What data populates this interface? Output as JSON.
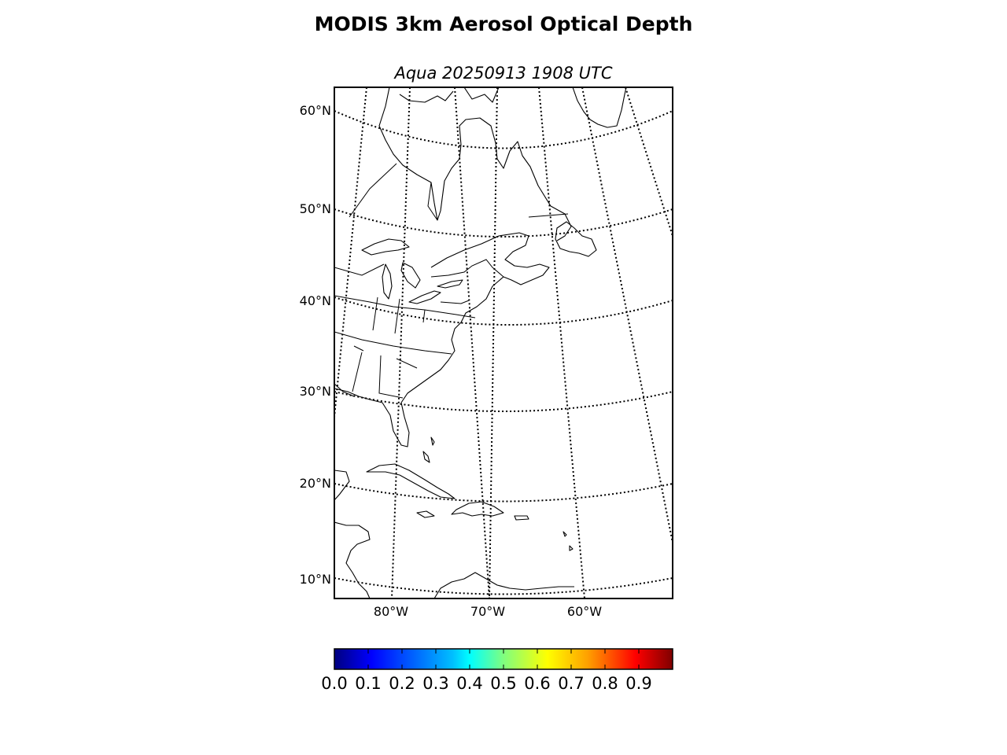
{
  "title": "MODIS 3km Aerosol Optical Depth",
  "subtitle": "Aqua 20250913 1908 UTC",
  "map": {
    "projection": "conic",
    "background": "#ffffff",
    "latitude_labels": [
      "60°N",
      "50°N",
      "40°N",
      "30°N",
      "20°N",
      "10°N"
    ],
    "longitude_labels": [
      "80°W",
      "70°W",
      "60°W"
    ],
    "graticule_style": "dotted",
    "regions_shown": [
      "Eastern North America",
      "Great Lakes",
      "Florida",
      "Caribbean",
      "Cuba",
      "Hispaniola",
      "Newfoundland",
      "Greenland (southern tip)",
      "Northern South America",
      "Central America"
    ]
  },
  "colorbar": {
    "colormap": "jet",
    "range": [
      0.0,
      1.0
    ],
    "tick_labels": [
      "0.0",
      "0.1",
      "0.2",
      "0.3",
      "0.4",
      "0.5",
      "0.6",
      "0.7",
      "0.8",
      "0.9"
    ],
    "colors": [
      "#00007f",
      "#0000ff",
      "#007fff",
      "#00ffff",
      "#7fff7f",
      "#ffff00",
      "#ff7f00",
      "#ff0000",
      "#7f0000"
    ]
  }
}
